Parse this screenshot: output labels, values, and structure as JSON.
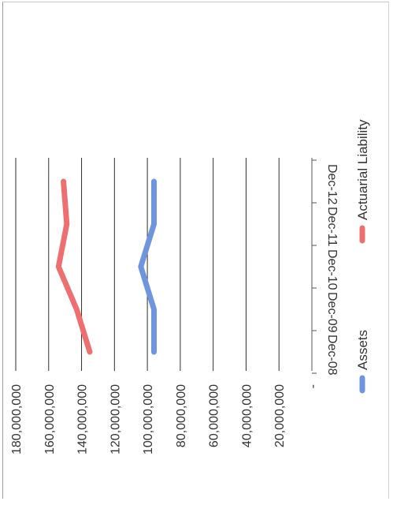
{
  "chart_data": {
    "type": "line",
    "title": "",
    "xlabel": "",
    "ylabel": "",
    "categories": [
      "Dec-08",
      "Dec-09",
      "Dec-10",
      "Dec-11",
      "Dec-12"
    ],
    "series": [
      {
        "name": "Assets",
        "color": "#6f96dd",
        "values": [
          96000000,
          96000000,
          104000000,
          96000000,
          96000000
        ]
      },
      {
        "name": "Actuarial Liability",
        "color": "#ee6f6f",
        "values": [
          135000000,
          143000000,
          154000000,
          149000000,
          151000000
        ]
      }
    ],
    "y_tick_labels": [
      "-",
      "20,000,000",
      "40,000,000",
      "60,000,000",
      "80,000,000",
      "100,000,000",
      "120,000,000",
      "140,000,000",
      "160,000,000",
      "180,000,000"
    ],
    "ylim": [
      0,
      180000000
    ],
    "grid": true,
    "legend": "right",
    "orientation": "rotated 90 degrees counter-clockwise on the scanned page"
  }
}
